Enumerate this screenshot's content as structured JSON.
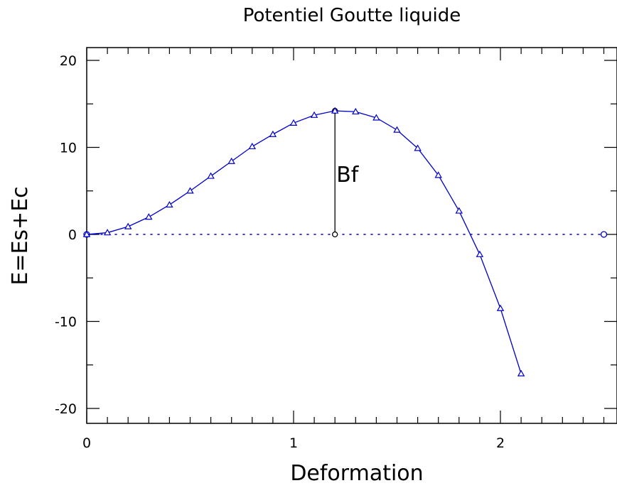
{
  "chart_data": {
    "type": "line",
    "title": "Potentiel Goutte liquide",
    "xlabel": "Deformation",
    "ylabel": "E=Es+Ec",
    "xlim": [
      0,
      2.55
    ],
    "ylim": [
      -22,
      22
    ],
    "x_ticks": [
      0,
      1,
      2
    ],
    "x_tick_labels": [
      "0",
      "1",
      "2"
    ],
    "y_ticks": [
      -20,
      -10,
      0,
      10,
      20
    ],
    "y_tick_labels": [
      "-20",
      "-10",
      "0",
      "10",
      "20"
    ],
    "grid": false,
    "series": [
      {
        "marker": "triangle",
        "color": "#0000cc",
        "x": [
          0,
          0.1,
          0.2,
          0.3,
          0.4,
          0.5,
          0.6,
          0.7,
          0.8,
          0.9,
          1.0,
          1.1,
          1.2,
          1.3,
          1.4,
          1.5,
          1.6,
          1.7,
          1.8,
          1.9,
          2.0,
          2.1
        ],
        "y": [
          0,
          0.2,
          0.9,
          2.0,
          3.4,
          5.0,
          6.7,
          8.4,
          10.1,
          11.5,
          12.8,
          13.7,
          14.2,
          14.1,
          13.4,
          12.0,
          9.9,
          6.8,
          2.7,
          -2.3,
          -8.5,
          -16.0
        ]
      }
    ],
    "reference_line": {
      "y": 0,
      "x": [
        0,
        2.5
      ],
      "style": "dotted",
      "color": "#0000cc"
    },
    "annotation": {
      "text": "Bf",
      "x": 1.2,
      "y_top": 14.2,
      "y_bottom": 0,
      "color": "#000000"
    }
  }
}
